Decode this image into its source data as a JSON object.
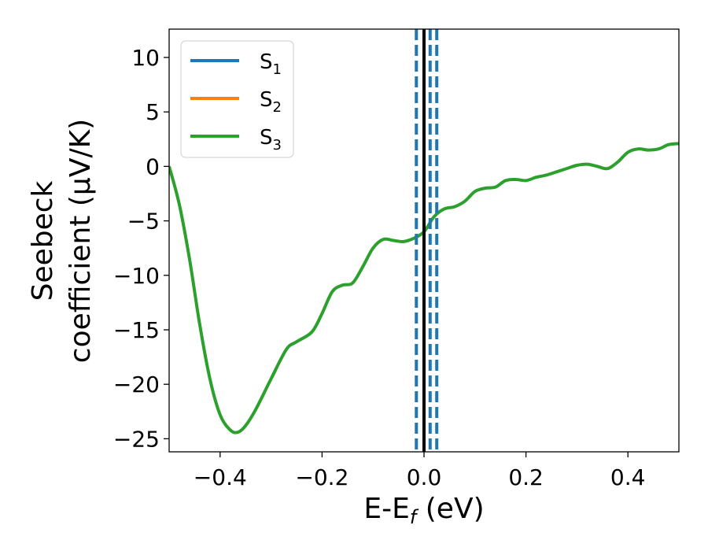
{
  "chart_data": {
    "type": "line",
    "xlabel": {
      "main": "E-E",
      "sub": "f",
      "tail": " (eV)"
    },
    "ylabel": {
      "line1": "Seebeck",
      "line2": "coefficient  (μV/K)"
    },
    "xlim": [
      -0.5,
      0.5
    ],
    "ylim": [
      -26.2,
      12.6
    ],
    "xticks": [
      -0.4,
      -0.2,
      0.0,
      0.2,
      0.4
    ],
    "xtick_labels": [
      "−0.4",
      "−0.2",
      "0.0",
      "0.2",
      "0.4"
    ],
    "yticks": [
      10,
      5,
      0,
      -5,
      -10,
      -15,
      -20,
      -25
    ],
    "ytick_labels": [
      "10",
      "5",
      "0",
      "−5",
      "−10",
      "−15",
      "−20",
      "−25"
    ],
    "legend_position": "top-left",
    "grid": false,
    "series": [
      {
        "name": "S",
        "sub": "1",
        "color": "#1f77b4",
        "values": []
      },
      {
        "name": "S",
        "sub": "2",
        "color": "#ff7f0e",
        "values": []
      },
      {
        "name": "S",
        "sub": "3",
        "color": "#2ca02c",
        "x": [
          -0.5,
          -0.48,
          -0.46,
          -0.44,
          -0.42,
          -0.4,
          -0.38,
          -0.365,
          -0.35,
          -0.33,
          -0.3,
          -0.27,
          -0.25,
          -0.22,
          -0.2,
          -0.18,
          -0.16,
          -0.14,
          -0.12,
          -0.1,
          -0.08,
          -0.06,
          -0.04,
          -0.02,
          0.0,
          0.02,
          0.04,
          0.06,
          0.08,
          0.1,
          0.12,
          0.14,
          0.16,
          0.18,
          0.2,
          0.22,
          0.24,
          0.26,
          0.28,
          0.3,
          0.32,
          0.34,
          0.36,
          0.38,
          0.4,
          0.42,
          0.44,
          0.46,
          0.48,
          0.5
        ],
        "y": [
          0.0,
          -3.5,
          -8.5,
          -14.5,
          -19.5,
          -22.8,
          -24.2,
          -24.4,
          -23.8,
          -22.3,
          -19.5,
          -16.8,
          -16.1,
          -15.2,
          -13.5,
          -11.5,
          -10.9,
          -10.7,
          -9.2,
          -7.5,
          -6.7,
          -6.8,
          -6.9,
          -6.6,
          -6.0,
          -4.6,
          -3.9,
          -3.7,
          -3.2,
          -2.3,
          -2.0,
          -1.9,
          -1.3,
          -1.2,
          -1.3,
          -1.0,
          -0.8,
          -0.5,
          -0.2,
          0.1,
          0.2,
          0.0,
          -0.2,
          0.4,
          1.3,
          1.6,
          1.5,
          1.6,
          2.0,
          2.1
        ]
      }
    ],
    "vertical_lines": [
      {
        "x": -0.015,
        "style": "dashed",
        "color": "#1f77b4"
      },
      {
        "x": 0.0,
        "style": "solid",
        "color": "#000000"
      },
      {
        "x": 0.012,
        "style": "dashed",
        "color": "#1f77b4"
      },
      {
        "x": 0.025,
        "style": "dashed",
        "color": "#1f77b4"
      }
    ]
  }
}
